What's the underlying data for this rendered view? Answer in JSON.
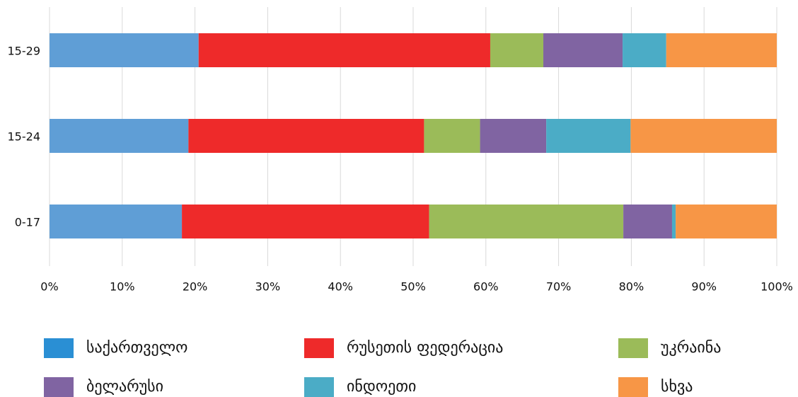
{
  "chart_data": {
    "type": "stacked-barh",
    "categories": [
      "15-29",
      "15-24",
      "0-17"
    ],
    "series": [
      {
        "name": "საქართველო",
        "color": "#5f9ed6",
        "values": [
          20.5,
          19.1,
          18.2
        ]
      },
      {
        "name": "რუსეთის ფედერაცია",
        "color": "#ee2a2a",
        "values": [
          40.1,
          32.4,
          34.0
        ]
      },
      {
        "name": "უკრაინა",
        "color": "#9bbb59",
        "values": [
          7.3,
          7.7,
          26.7
        ]
      },
      {
        "name": "ბელარუსი",
        "color": "#8064a2",
        "values": [
          10.9,
          9.1,
          6.7
        ]
      },
      {
        "name": "ინდოეთი",
        "color": "#4bacc6",
        "values": [
          6.0,
          11.6,
          0.5
        ]
      },
      {
        "name": "სხვა",
        "color": "#f79646",
        "values": [
          15.2,
          20.1,
          13.9
        ]
      }
    ],
    "xlim": [
      0,
      100
    ],
    "xticks": [
      {
        "value": 0,
        "label": "0%"
      },
      {
        "value": 10,
        "label": "10%"
      },
      {
        "value": 20,
        "label": "20%"
      },
      {
        "value": 30,
        "label": "30%"
      },
      {
        "value": 40,
        "label": "40%"
      },
      {
        "value": 50,
        "label": "50%"
      },
      {
        "value": 60,
        "label": "60%"
      },
      {
        "value": 70,
        "label": "70%"
      },
      {
        "value": 80,
        "label": "80%"
      },
      {
        "value": 90,
        "label": "90%"
      },
      {
        "value": 100,
        "label": "100%"
      }
    ],
    "grid": true,
    "legend": "bottom"
  }
}
